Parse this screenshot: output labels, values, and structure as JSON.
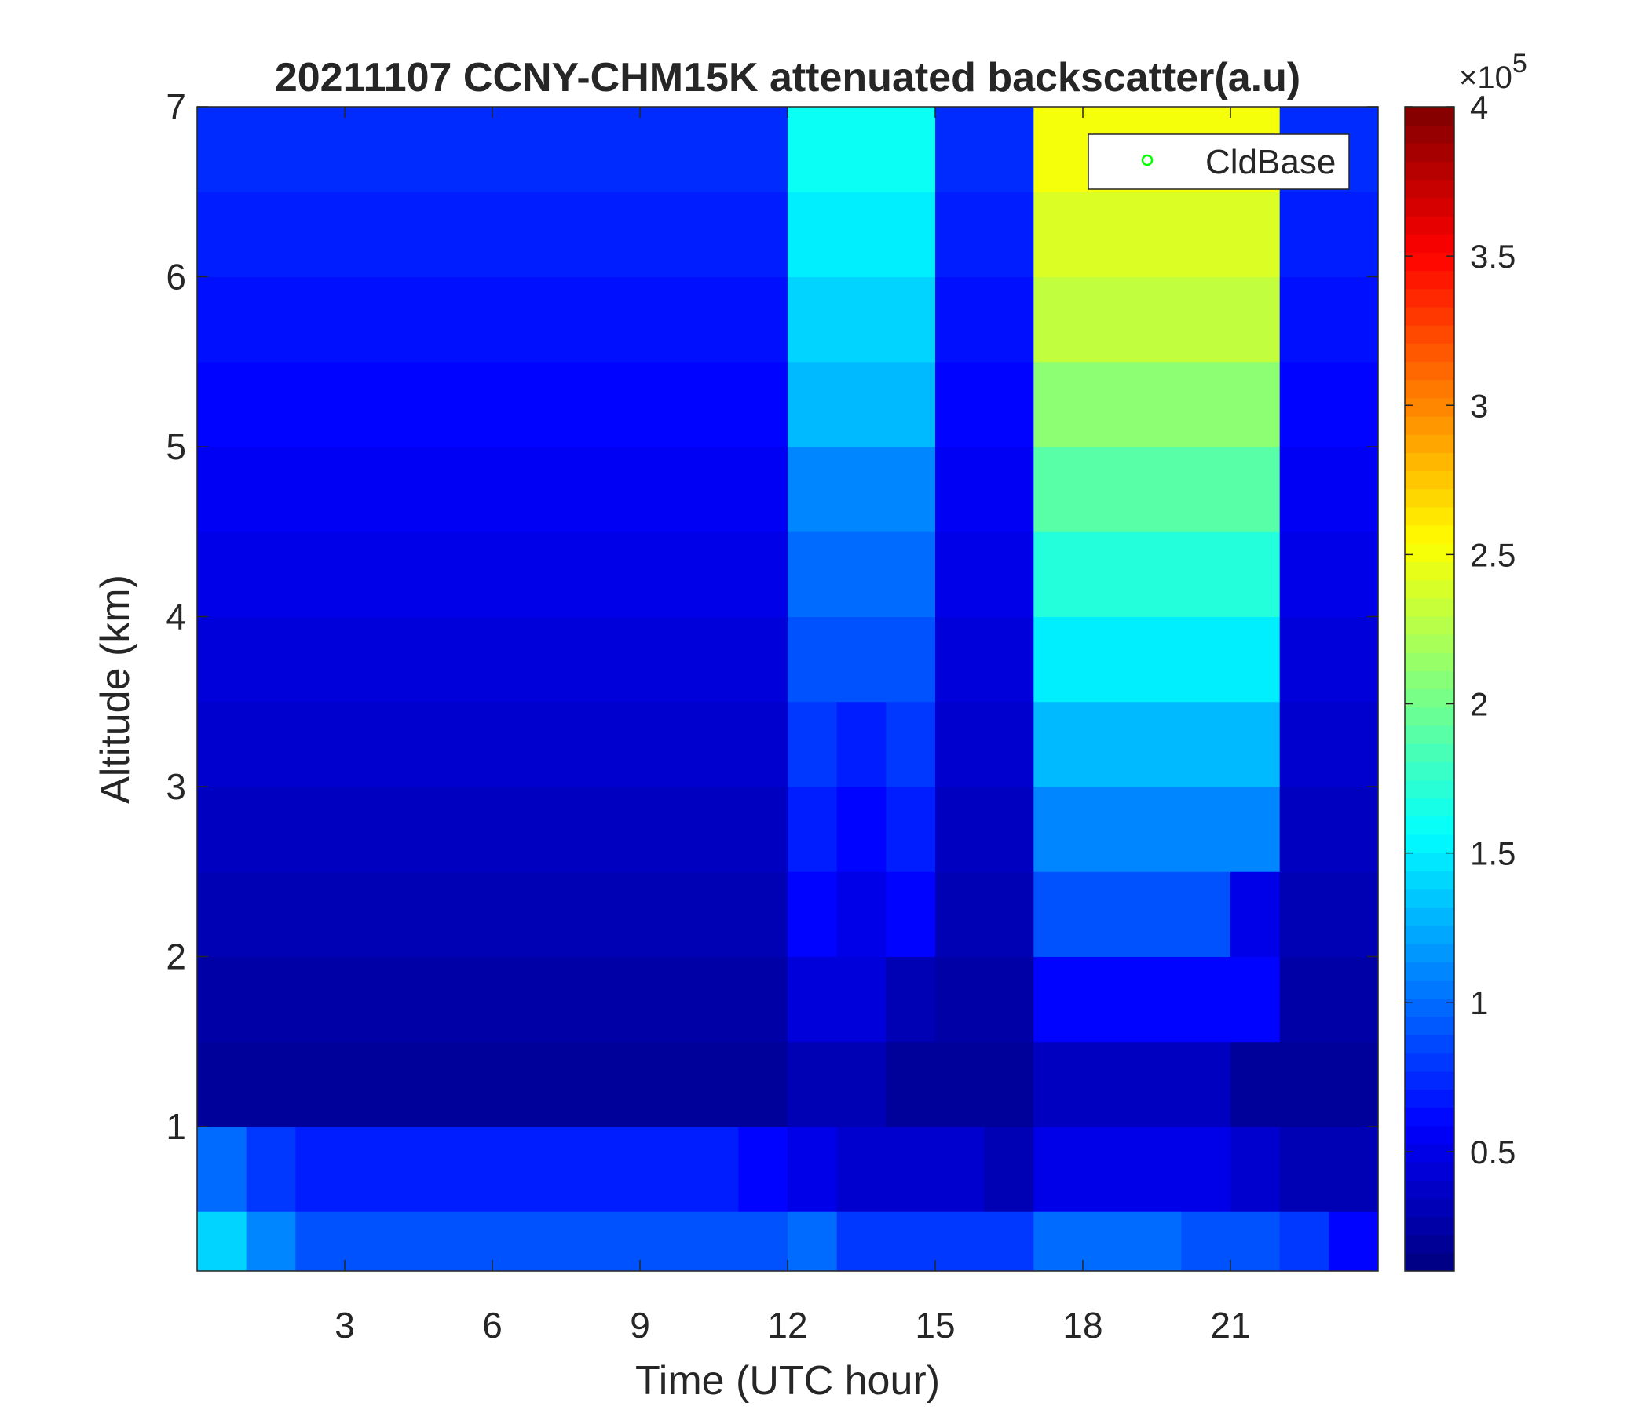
{
  "chart_data": {
    "type": "heatmap",
    "title": "20211107 CCNY-CHM15K attenuated backscatter(a.u)",
    "x_label": "Time (UTC hour)",
    "y_label": "Altitude (km)",
    "xlim": [
      0,
      24
    ],
    "ylim": [
      0.15,
      7
    ],
    "xticks": [
      3,
      6,
      9,
      12,
      15,
      18,
      21
    ],
    "yticks": [
      1,
      2,
      3,
      4,
      5,
      6,
      7
    ],
    "x_edges": [
      0,
      1,
      2,
      3,
      4,
      5,
      6,
      7,
      8,
      9,
      10,
      11,
      12,
      13,
      14,
      15,
      16,
      17,
      18,
      19,
      20,
      21,
      22,
      23,
      24
    ],
    "y_edges": [
      0.15,
      0.5,
      1,
      1.5,
      2,
      2.5,
      3,
      3.5,
      4,
      4.5,
      5,
      5.5,
      6,
      6.5,
      7
    ],
    "colormap": "jet",
    "clim": [
      0.1,
      4
    ],
    "colorbar_ticks": [
      0.5,
      1,
      1.5,
      2,
      2.5,
      3,
      3.5,
      4
    ],
    "colorbar_scale": {
      "base": "×10",
      "exponent": "5"
    },
    "legend": {
      "location": "northeast",
      "entries": [
        {
          "name": "CldBase",
          "color": "#00ff00",
          "marker": "circle"
        }
      ]
    },
    "z": [
      [
        1.4,
        1.1,
        0.9,
        0.9,
        0.9,
        0.9,
        0.9,
        0.9,
        0.9,
        0.9,
        0.9,
        0.9,
        1.0,
        0.8,
        0.8,
        0.8,
        0.8,
        1.0,
        1.0,
        1.0,
        0.9,
        0.9,
        0.8,
        0.6
      ],
      [
        1.0,
        0.8,
        0.7,
        0.7,
        0.7,
        0.7,
        0.7,
        0.7,
        0.7,
        0.7,
        0.7,
        0.6,
        0.5,
        0.4,
        0.4,
        0.4,
        0.3,
        0.5,
        0.5,
        0.5,
        0.5,
        0.4,
        0.3,
        0.3
      ],
      [
        0.2,
        0.2,
        0.2,
        0.2,
        0.2,
        0.2,
        0.2,
        0.2,
        0.2,
        0.2,
        0.2,
        0.2,
        0.3,
        0.3,
        0.2,
        0.2,
        0.2,
        0.35,
        0.35,
        0.35,
        0.35,
        0.2,
        0.2,
        0.2
      ],
      [
        0.25,
        0.25,
        0.25,
        0.25,
        0.25,
        0.25,
        0.25,
        0.25,
        0.25,
        0.25,
        0.25,
        0.25,
        0.45,
        0.45,
        0.3,
        0.25,
        0.25,
        0.6,
        0.6,
        0.6,
        0.6,
        0.6,
        0.25,
        0.25
      ],
      [
        0.3,
        0.3,
        0.3,
        0.3,
        0.3,
        0.3,
        0.3,
        0.3,
        0.3,
        0.3,
        0.3,
        0.3,
        0.6,
        0.5,
        0.6,
        0.3,
        0.3,
        0.9,
        0.9,
        0.9,
        0.9,
        0.5,
        0.3,
        0.3
      ],
      [
        0.35,
        0.35,
        0.35,
        0.35,
        0.35,
        0.35,
        0.35,
        0.35,
        0.35,
        0.35,
        0.35,
        0.35,
        0.7,
        0.6,
        0.7,
        0.35,
        0.35,
        1.1,
        1.1,
        1.1,
        1.1,
        1.1,
        0.35,
        0.35
      ],
      [
        0.4,
        0.4,
        0.4,
        0.4,
        0.4,
        0.4,
        0.4,
        0.4,
        0.4,
        0.4,
        0.4,
        0.4,
        0.8,
        0.7,
        0.8,
        0.4,
        0.4,
        1.3,
        1.3,
        1.3,
        1.3,
        1.3,
        0.4,
        0.4
      ],
      [
        0.45,
        0.45,
        0.45,
        0.45,
        0.45,
        0.45,
        0.45,
        0.45,
        0.45,
        0.45,
        0.45,
        0.45,
        0.9,
        0.9,
        0.9,
        0.45,
        0.45,
        1.5,
        1.5,
        1.5,
        1.5,
        1.5,
        0.45,
        0.45
      ],
      [
        0.5,
        0.5,
        0.5,
        0.5,
        0.5,
        0.5,
        0.5,
        0.5,
        0.5,
        0.5,
        0.5,
        0.5,
        1.0,
        1.0,
        1.0,
        0.5,
        0.5,
        1.7,
        1.7,
        1.7,
        1.7,
        1.7,
        0.5,
        0.5
      ],
      [
        0.55,
        0.55,
        0.55,
        0.55,
        0.55,
        0.55,
        0.55,
        0.55,
        0.55,
        0.55,
        0.55,
        0.55,
        1.1,
        1.1,
        1.1,
        0.55,
        0.55,
        1.9,
        1.9,
        1.9,
        1.9,
        1.9,
        0.55,
        0.55
      ],
      [
        0.6,
        0.6,
        0.6,
        0.6,
        0.6,
        0.6,
        0.6,
        0.6,
        0.6,
        0.6,
        0.6,
        0.6,
        1.3,
        1.3,
        1.3,
        0.6,
        0.6,
        2.1,
        2.1,
        2.1,
        2.1,
        2.1,
        0.6,
        0.6
      ],
      [
        0.65,
        0.65,
        0.65,
        0.65,
        0.65,
        0.65,
        0.65,
        0.65,
        0.65,
        0.65,
        0.65,
        0.65,
        1.4,
        1.4,
        1.4,
        0.65,
        0.65,
        2.3,
        2.3,
        2.3,
        2.3,
        2.3,
        0.65,
        0.65
      ],
      [
        0.7,
        0.7,
        0.7,
        0.7,
        0.7,
        0.7,
        0.7,
        0.7,
        0.7,
        0.7,
        0.7,
        0.7,
        1.5,
        1.5,
        1.5,
        0.7,
        0.7,
        2.4,
        2.4,
        2.4,
        2.4,
        2.4,
        0.7,
        0.7
      ],
      [
        0.75,
        0.75,
        0.75,
        0.75,
        0.75,
        0.75,
        0.75,
        0.75,
        0.75,
        0.75,
        0.75,
        0.75,
        1.6,
        1.6,
        1.6,
        0.75,
        0.75,
        2.5,
        2.5,
        2.5,
        2.5,
        2.5,
        0.75,
        0.75
      ]
    ]
  }
}
